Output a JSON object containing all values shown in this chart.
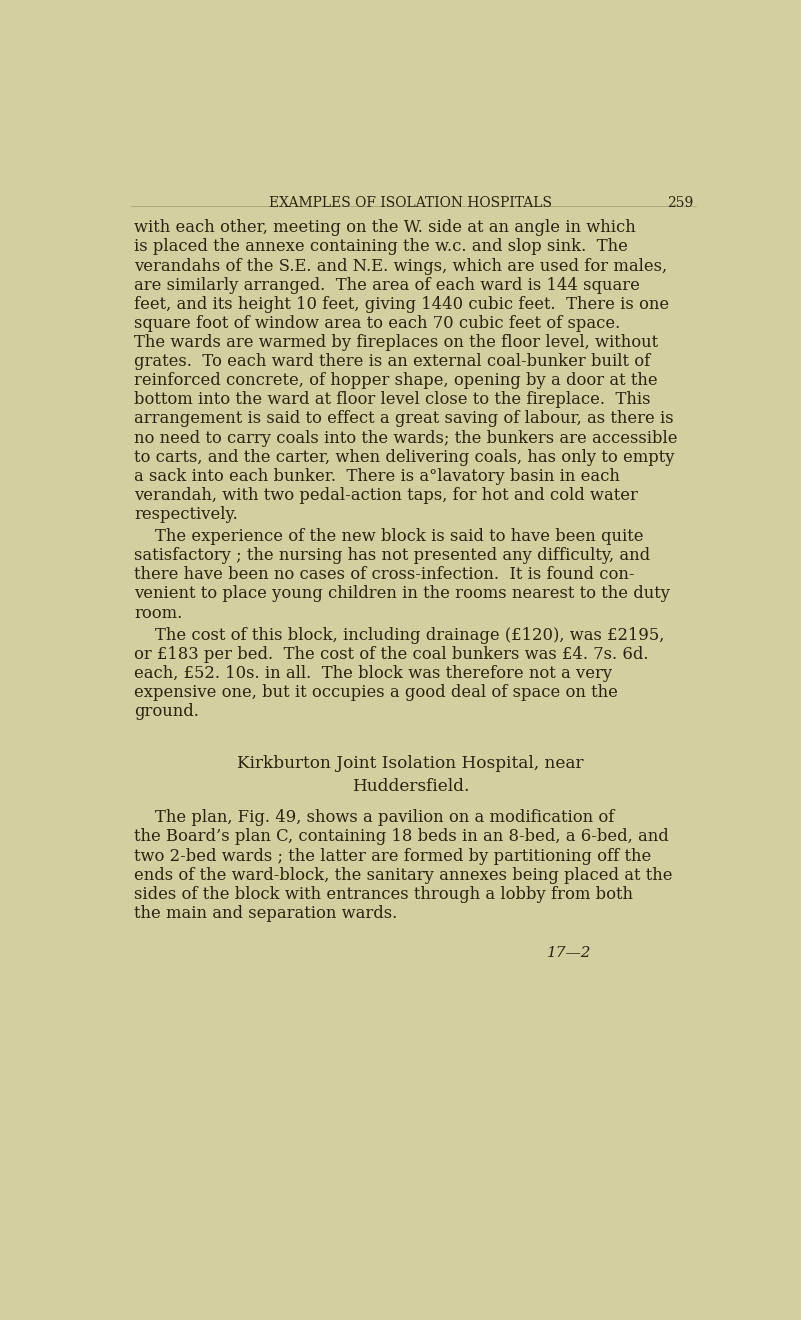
{
  "background_color": "#d4cfa0",
  "text_color": "#2a2310",
  "header_text": "EXAMPLES OF ISOLATION HOSPITALS",
  "page_number": "259",
  "header_fontsize": 10.0,
  "body_fontsize": 11.8,
  "title_fontsize": 12.2,
  "footnote_fontsize": 11.0,
  "body_lines": [
    "with each other, meeting on the W. side at an angle in which",
    "is placed the annexe containing the w.c. and slop sink.  The",
    "verandahs of the S.E. and N.E. wings, which are used for males,",
    "are similarly arranged.  The area of each ward is 144 square",
    "feet, and its height 10 feet, giving 1440 cubic feet.  There is one",
    "square foot of window area to each 70 cubic feet of space.",
    "The wards are warmed by fireplaces on the floor level, without",
    "grates.  To each ward there is an external coal-bunker built of",
    "reinforced concrete, of hopper shape, opening by a door at the",
    "bottom into the ward at floor level close to the fireplace.  This",
    "arrangement is said to effect a great saving of labour, as there is",
    "no need to carry coals into the wards; the bunkers are accessible",
    "to carts, and the carter, when delivering coals, has only to empty",
    "a sack into each bunker.  There is a°lavatory basin in each",
    "verandah, with two pedal-action taps, for hot and cold water",
    "respectively."
  ],
  "paragraph2_lines": [
    "    The experience of the new block is said to have been quite",
    "satisfactory ; the nursing has not presented any difficulty, and",
    "there have been no cases of cross-infection.  It is found con-",
    "venient to place young children in the rooms nearest to the duty",
    "room."
  ],
  "paragraph3_lines": [
    "    The cost of this block, including drainage (£120), was £2195,",
    "or £183 per bed.  The cost of the coal bunkers was £4. 7s. 6d.",
    "each, £52. 10s. in all.  The block was therefore not a very",
    "expensive one, but it occupies a good deal of space on the",
    "ground."
  ],
  "section_title_line1": "Kirkburton Joint Isolation Hospital, near",
  "section_title_line2": "Huddersfield.",
  "paragraph4_lines": [
    "    The plan, Fig. 49, shows a pavilion on a modification of",
    "the Board’s plan C, containing 18 beds in an 8-bed, a 6-bed, and",
    "two 2-bed wards ; the latter are formed by partitioning off the",
    "ends of the ward-block, the sanitary annexes being placed at the",
    "sides of the block with entrances through a lobby from both",
    "the main and separation wards."
  ],
  "footnote": "17—2"
}
